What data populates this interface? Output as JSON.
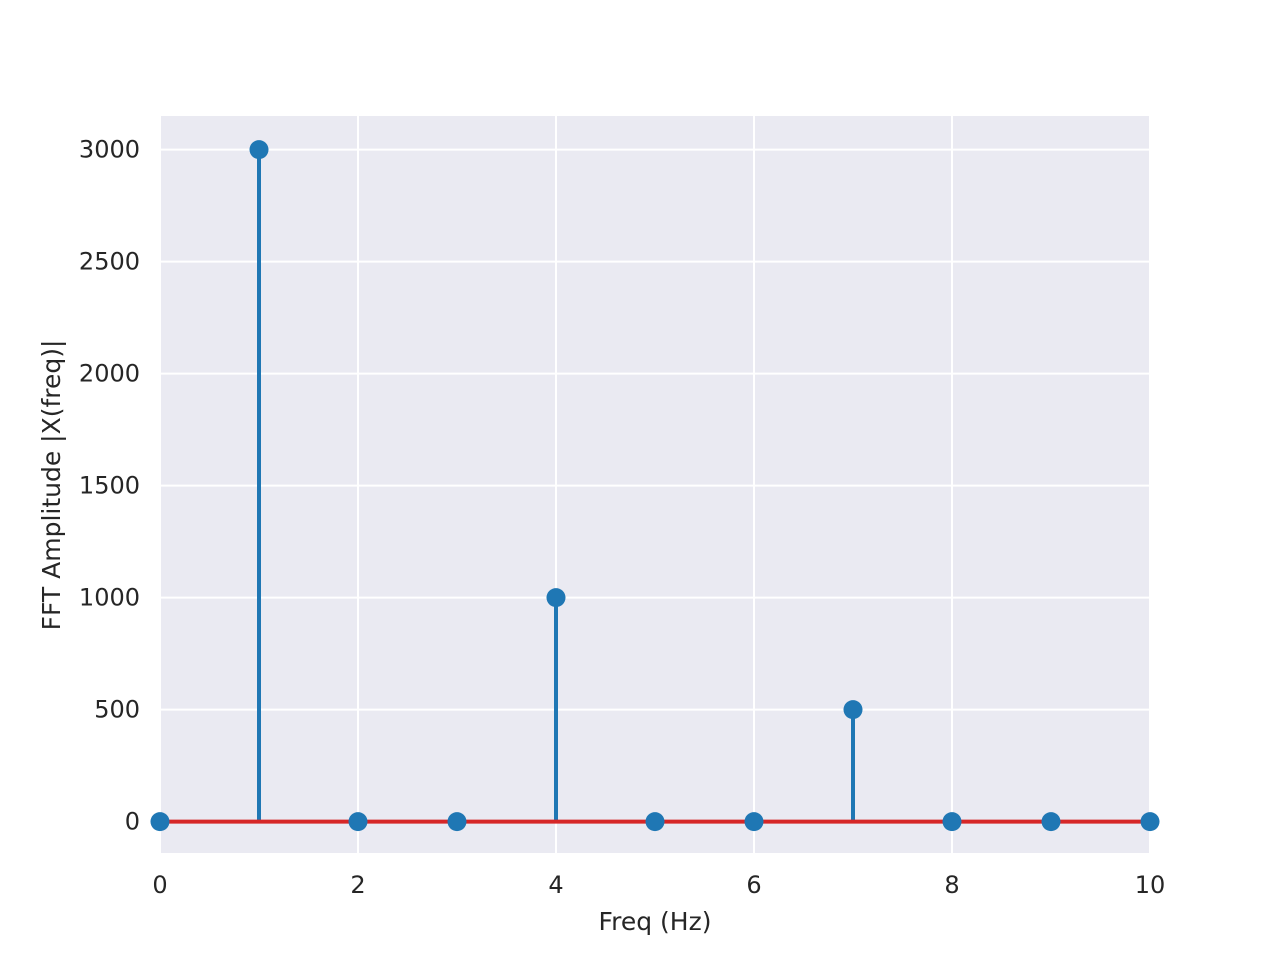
{
  "chart_data": {
    "type": "stem",
    "title": "",
    "xlabel": "Freq (Hz)",
    "ylabel": "FFT Amplitude |X(freq)|",
    "xlim": [
      0,
      10
    ],
    "ylim": [
      -140,
      3150
    ],
    "xticks": [
      0,
      2,
      4,
      6,
      8,
      10
    ],
    "yticks": [
      0,
      500,
      1000,
      1500,
      2000,
      2500,
      3000
    ],
    "grid": true,
    "baseline": 0,
    "x": [
      0,
      1,
      2,
      3,
      4,
      5,
      6,
      7,
      8,
      9,
      10
    ],
    "y": [
      0,
      3000,
      0,
      0,
      1000,
      0,
      0,
      500,
      0,
      0,
      0
    ]
  },
  "colors": {
    "plot_background": "#eaeaf2",
    "grid": "#ffffff",
    "stem": "#1f77b4",
    "baseline": "#d62728",
    "text": "#262626"
  }
}
